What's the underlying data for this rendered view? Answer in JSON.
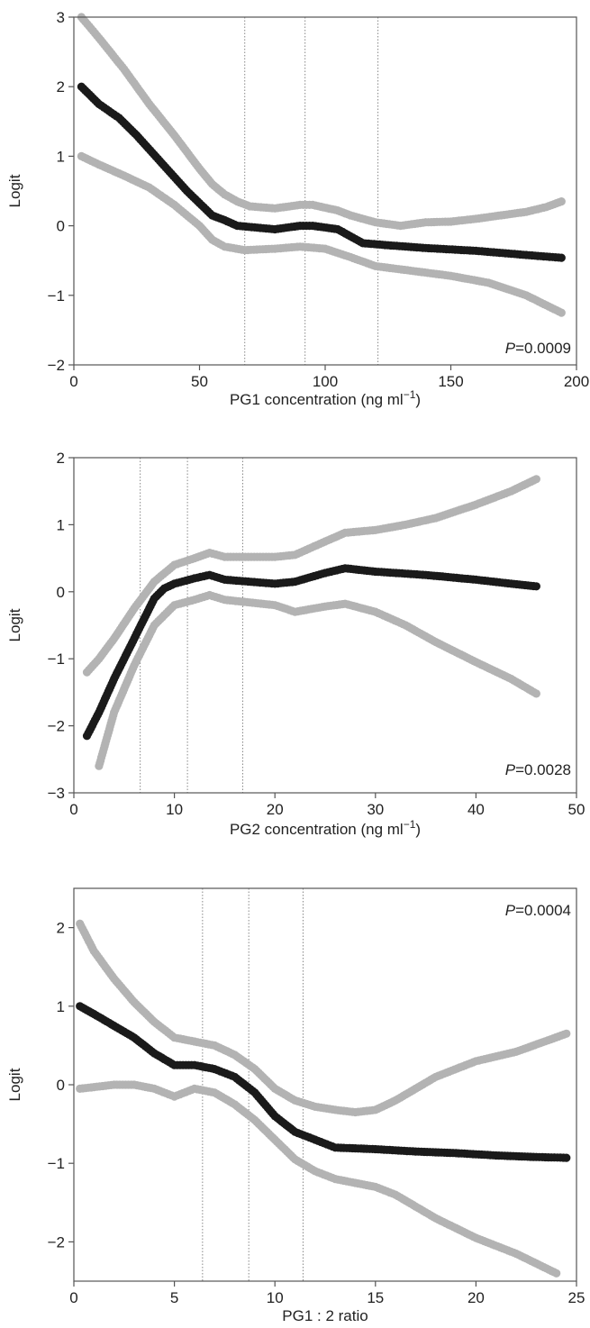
{
  "chart_data": [
    {
      "type": "scatter",
      "title": "",
      "xlabel": "PG1 concentration (ng ml",
      "xlabel_sup": "−1",
      "xlabel_tail": ")",
      "ylabel": "Logit",
      "annotation_italic": "P",
      "annotation_rest": "=0.0009",
      "annotation_pos": "bottom-right",
      "xlim": [
        0,
        200
      ],
      "ylim": [
        -2,
        3
      ],
      "xticks": [
        "0",
        "50",
        "100",
        "150",
        "200"
      ],
      "yticks": [
        "−2",
        "−1",
        "0",
        "1",
        "2",
        "3"
      ],
      "xtick_values": [
        0,
        50,
        100,
        150,
        200
      ],
      "ytick_values": [
        -2,
        -1,
        0,
        1,
        2,
        3
      ],
      "vlines": [
        68,
        92,
        121
      ],
      "series": [
        {
          "color": "#b3b3b3",
          "knots": [
            [
              3,
              3.0
            ],
            [
              10,
              2.7
            ],
            [
              20,
              2.25
            ],
            [
              30,
              1.75
            ],
            [
              40,
              1.3
            ],
            [
              50,
              0.82
            ],
            [
              55,
              0.6
            ],
            [
              60,
              0.45
            ],
            [
              65,
              0.35
            ],
            [
              70,
              0.28
            ],
            [
              80,
              0.25
            ],
            [
              90,
              0.3
            ],
            [
              95,
              0.3
            ],
            [
              105,
              0.22
            ],
            [
              110,
              0.15
            ],
            [
              120,
              0.05
            ],
            [
              130,
              0.0
            ],
            [
              140,
              0.05
            ],
            [
              150,
              0.06
            ],
            [
              160,
              0.1
            ],
            [
              170,
              0.15
            ],
            [
              180,
              0.2
            ],
            [
              188,
              0.27
            ],
            [
              194,
              0.35
            ]
          ]
        },
        {
          "color": "#1a1a1a",
          "knots": [
            [
              3,
              2.0
            ],
            [
              10,
              1.75
            ],
            [
              18,
              1.55
            ],
            [
              25,
              1.3
            ],
            [
              35,
              0.9
            ],
            [
              45,
              0.5
            ],
            [
              55,
              0.15
            ],
            [
              60,
              0.08
            ],
            [
              65,
              0.0
            ],
            [
              80,
              -0.05
            ],
            [
              90,
              0.0
            ],
            [
              95,
              0.0
            ],
            [
              105,
              -0.05
            ],
            [
              115,
              -0.25
            ],
            [
              125,
              -0.28
            ],
            [
              140,
              -0.32
            ],
            [
              160,
              -0.36
            ],
            [
              180,
              -0.42
            ],
            [
              194,
              -0.46
            ]
          ]
        },
        {
          "color": "#b3b3b3",
          "knots": [
            [
              3,
              1.0
            ],
            [
              10,
              0.88
            ],
            [
              20,
              0.72
            ],
            [
              30,
              0.55
            ],
            [
              40,
              0.3
            ],
            [
              50,
              0.0
            ],
            [
              55,
              -0.2
            ],
            [
              60,
              -0.3
            ],
            [
              68,
              -0.35
            ],
            [
              80,
              -0.33
            ],
            [
              90,
              -0.3
            ],
            [
              100,
              -0.33
            ],
            [
              110,
              -0.45
            ],
            [
              120,
              -0.58
            ],
            [
              135,
              -0.65
            ],
            [
              150,
              -0.72
            ],
            [
              165,
              -0.82
            ],
            [
              180,
              -1.0
            ],
            [
              194,
              -1.25
            ]
          ]
        }
      ]
    },
    {
      "type": "scatter",
      "title": "",
      "xlabel": "PG2 concentration (ng ml",
      "xlabel_sup": "−1",
      "xlabel_tail": ")",
      "ylabel": "Logit",
      "annotation_italic": "P",
      "annotation_rest": "=0.0028",
      "annotation_pos": "bottom-right",
      "xlim": [
        0,
        50
      ],
      "ylim": [
        -3,
        2
      ],
      "xticks": [
        "0",
        "10",
        "20",
        "30",
        "40",
        "50"
      ],
      "yticks": [
        "−3",
        "−2",
        "−1",
        "0",
        "1",
        "2"
      ],
      "xtick_values": [
        0,
        10,
        20,
        30,
        40,
        50
      ],
      "ytick_values": [
        -3,
        -2,
        -1,
        0,
        1,
        2
      ],
      "vlines": [
        6.6,
        11.3,
        16.8
      ],
      "series": [
        {
          "color": "#b3b3b3",
          "knots": [
            [
              1.3,
              -1.2
            ],
            [
              2.5,
              -1.0
            ],
            [
              4,
              -0.7
            ],
            [
              6,
              -0.25
            ],
            [
              8,
              0.15
            ],
            [
              10,
              0.4
            ],
            [
              12,
              0.5
            ],
            [
              13.5,
              0.58
            ],
            [
              15,
              0.52
            ],
            [
              20,
              0.52
            ],
            [
              22,
              0.55
            ],
            [
              25,
              0.75
            ],
            [
              27,
              0.88
            ],
            [
              30,
              0.92
            ],
            [
              33,
              1.0
            ],
            [
              36,
              1.1
            ],
            [
              40,
              1.3
            ],
            [
              43.5,
              1.5
            ],
            [
              46,
              1.68
            ]
          ]
        },
        {
          "color": "#1a1a1a",
          "knots": [
            [
              1.3,
              -2.15
            ],
            [
              2.5,
              -1.8
            ],
            [
              4,
              -1.3
            ],
            [
              6,
              -0.7
            ],
            [
              8,
              -0.1
            ],
            [
              9,
              0.05
            ],
            [
              10,
              0.12
            ],
            [
              12,
              0.2
            ],
            [
              13.5,
              0.25
            ],
            [
              15,
              0.18
            ],
            [
              20,
              0.12
            ],
            [
              22,
              0.15
            ],
            [
              25,
              0.28
            ],
            [
              27,
              0.35
            ],
            [
              30,
              0.3
            ],
            [
              35,
              0.25
            ],
            [
              40,
              0.18
            ],
            [
              43.5,
              0.12
            ],
            [
              46,
              0.08
            ]
          ]
        },
        {
          "color": "#b3b3b3",
          "knots": [
            [
              2.5,
              -2.6
            ],
            [
              4,
              -1.8
            ],
            [
              6,
              -1.1
            ],
            [
              8,
              -0.5
            ],
            [
              10,
              -0.2
            ],
            [
              12,
              -0.12
            ],
            [
              13.5,
              -0.05
            ],
            [
              15,
              -0.12
            ],
            [
              20,
              -0.2
            ],
            [
              22,
              -0.3
            ],
            [
              25,
              -0.22
            ],
            [
              27,
              -0.18
            ],
            [
              30,
              -0.3
            ],
            [
              33,
              -0.5
            ],
            [
              36,
              -0.75
            ],
            [
              40,
              -1.05
            ],
            [
              43.5,
              -1.3
            ],
            [
              46,
              -1.52
            ]
          ]
        }
      ]
    },
    {
      "type": "scatter",
      "title": "",
      "xlabel": "PG1 : 2 ratio",
      "xlabel_sup": "",
      "xlabel_tail": "",
      "ylabel": "Logit",
      "annotation_italic": "P",
      "annotation_rest": "=0.0004",
      "annotation_pos": "top-right",
      "xlim": [
        0,
        25
      ],
      "ylim": [
        -2.5,
        2.5
      ],
      "xticks": [
        "0",
        "5",
        "10",
        "15",
        "20",
        "25"
      ],
      "yticks": [
        "−2",
        "−1",
        "0",
        "1",
        "2"
      ],
      "xtick_values": [
        0,
        5,
        10,
        15,
        20,
        25
      ],
      "ytick_values": [
        -2,
        -1,
        0,
        1,
        2
      ],
      "vlines": [
        6.4,
        8.7,
        11.4
      ],
      "series": [
        {
          "color": "#b3b3b3",
          "knots": [
            [
              0.3,
              2.05
            ],
            [
              1,
              1.7
            ],
            [
              2,
              1.35
            ],
            [
              3,
              1.05
            ],
            [
              4,
              0.8
            ],
            [
              5,
              0.6
            ],
            [
              6,
              0.55
            ],
            [
              7,
              0.5
            ],
            [
              8,
              0.38
            ],
            [
              9,
              0.2
            ],
            [
              10,
              -0.05
            ],
            [
              11,
              -0.2
            ],
            [
              12,
              -0.28
            ],
            [
              13,
              -0.32
            ],
            [
              14,
              -0.35
            ],
            [
              15,
              -0.32
            ],
            [
              16,
              -0.2
            ],
            [
              17,
              -0.05
            ],
            [
              18,
              0.1
            ],
            [
              20,
              0.3
            ],
            [
              22,
              0.42
            ],
            [
              24.5,
              0.65
            ]
          ]
        },
        {
          "color": "#1a1a1a",
          "knots": [
            [
              0.3,
              1.0
            ],
            [
              1,
              0.9
            ],
            [
              2,
              0.75
            ],
            [
              3,
              0.6
            ],
            [
              4,
              0.4
            ],
            [
              5,
              0.25
            ],
            [
              6,
              0.25
            ],
            [
              7,
              0.2
            ],
            [
              8,
              0.1
            ],
            [
              9,
              -0.1
            ],
            [
              10,
              -0.4
            ],
            [
              11,
              -0.6
            ],
            [
              12,
              -0.7
            ],
            [
              13,
              -0.8
            ],
            [
              15,
              -0.82
            ],
            [
              17,
              -0.85
            ],
            [
              19,
              -0.87
            ],
            [
              21,
              -0.9
            ],
            [
              23,
              -0.92
            ],
            [
              24.5,
              -0.93
            ]
          ]
        },
        {
          "color": "#b3b3b3",
          "knots": [
            [
              0.3,
              -0.05
            ],
            [
              1,
              -0.03
            ],
            [
              2,
              0.0
            ],
            [
              3,
              0.0
            ],
            [
              4,
              -0.05
            ],
            [
              5,
              -0.15
            ],
            [
              6,
              -0.05
            ],
            [
              7,
              -0.1
            ],
            [
              8,
              -0.25
            ],
            [
              9,
              -0.45
            ],
            [
              10,
              -0.7
            ],
            [
              11,
              -0.95
            ],
            [
              12,
              -1.1
            ],
            [
              13,
              -1.2
            ],
            [
              14,
              -1.25
            ],
            [
              15,
              -1.3
            ],
            [
              16,
              -1.4
            ],
            [
              17,
              -1.55
            ],
            [
              18,
              -1.7
            ],
            [
              20,
              -1.95
            ],
            [
              22,
              -2.15
            ],
            [
              24,
              -2.4
            ]
          ]
        }
      ]
    }
  ]
}
